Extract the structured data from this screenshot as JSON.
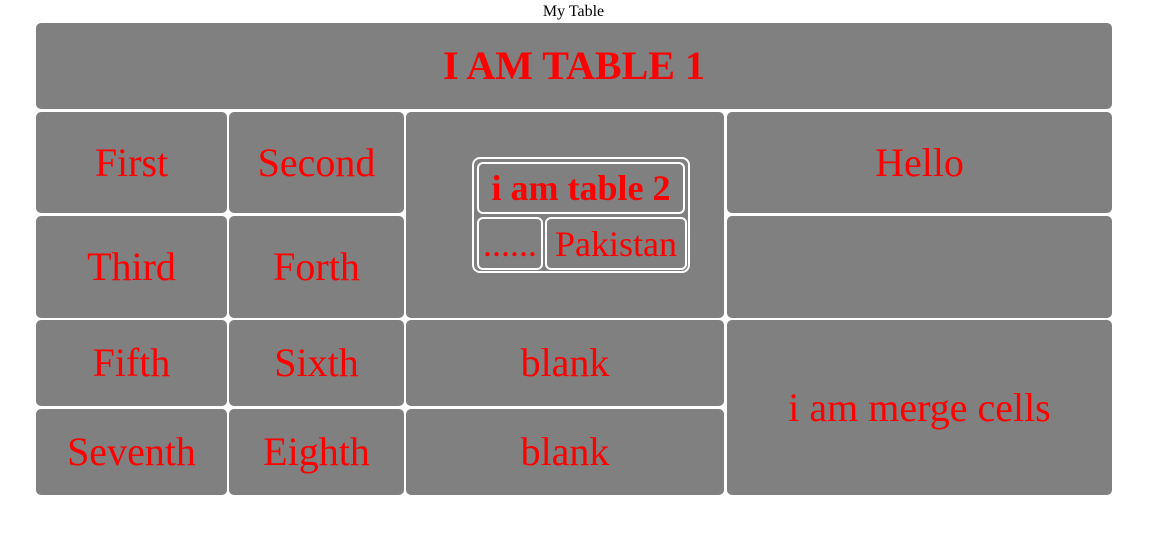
{
  "page": {
    "caption": "My Table"
  },
  "table1": {
    "title": "I AM TABLE 1",
    "rows": {
      "first": "First",
      "second": "Second",
      "hello": "Hello",
      "third": "Third",
      "forth": "Forth",
      "empty_right": "",
      "fifth": "Fifth",
      "sixth": "Sixth",
      "blank1": "blank",
      "merge": "i am merge cells",
      "seventh": "Seventh",
      "eighth": "Eighth",
      "blank2": "blank"
    }
  },
  "table2": {
    "title": "i am table 2",
    "dots": "......",
    "country": "Pakistan"
  },
  "colors": {
    "cell_background": "#808080",
    "text": "#ff0000",
    "border": "#ffffff"
  }
}
